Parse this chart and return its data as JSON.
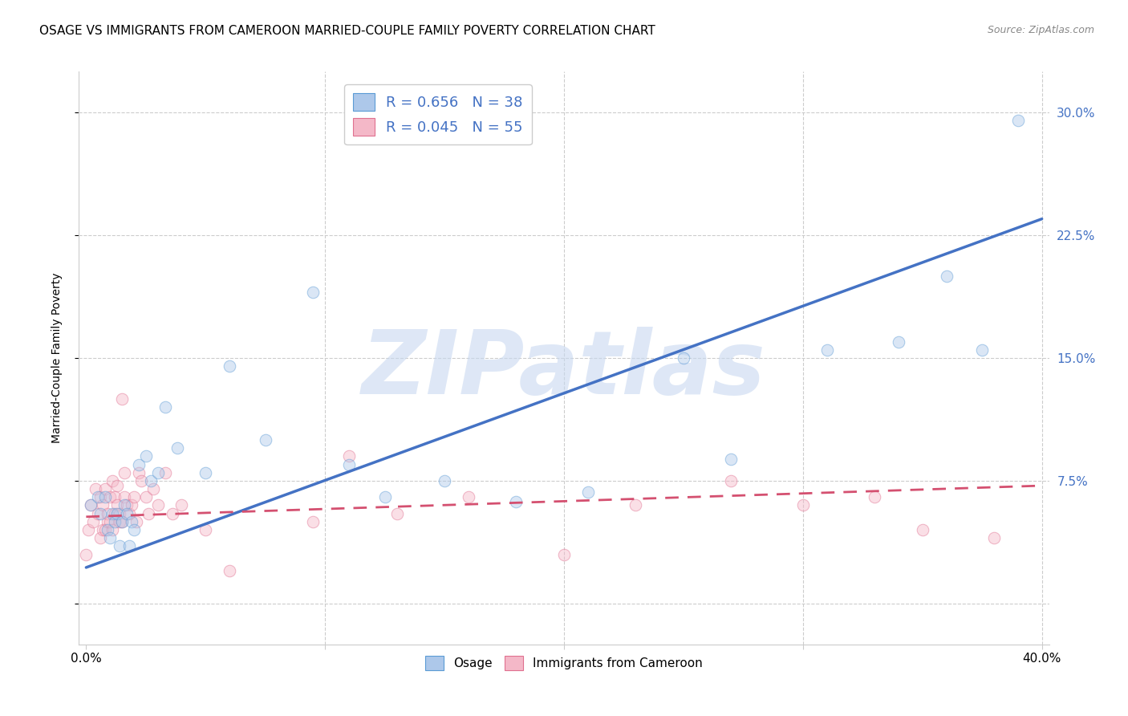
{
  "title": "OSAGE VS IMMIGRANTS FROM CAMEROON MARRIED-COUPLE FAMILY POVERTY CORRELATION CHART",
  "source": "Source: ZipAtlas.com",
  "ylabel_label": "Married-Couple Family Poverty",
  "xlim": [
    -0.003,
    0.403
  ],
  "ylim": [
    -0.025,
    0.325
  ],
  "yticks_right": [
    0.0,
    0.075,
    0.15,
    0.225,
    0.3
  ],
  "yticklabels_right": [
    "",
    "7.5%",
    "15.0%",
    "22.5%",
    "30.0%"
  ],
  "xtick_positions": [
    0.0,
    0.1,
    0.2,
    0.3,
    0.4
  ],
  "xticklabels": [
    "0.0%",
    "",
    "",
    "",
    "40.0%"
  ],
  "series1_name": "Osage",
  "series1_color": "#adc8ea",
  "series1_edge_color": "#5b9bd5",
  "series1_line_color": "#4472c4",
  "series1_R": 0.656,
  "series1_N": 38,
  "series2_name": "Immigrants from Cameroon",
  "series2_color": "#f4b8c8",
  "series2_edge_color": "#e07090",
  "series2_line_color": "#d45070",
  "series2_R": 0.045,
  "series2_N": 55,
  "legend_R_color": "#4472c4",
  "background_color": "#ffffff",
  "grid_color": "#cccccc",
  "watermark_text": "ZIPatlas",
  "watermark_color": "#c8d8f0",
  "title_fontsize": 11,
  "axis_fontsize": 10,
  "tick_fontsize": 11,
  "legend_fontsize": 13,
  "scatter_size": 110,
  "scatter_alpha": 0.45,
  "blue_line_x": [
    0.0,
    0.4
  ],
  "blue_line_y": [
    0.022,
    0.235
  ],
  "pink_line_x": [
    0.0,
    0.4
  ],
  "pink_line_y": [
    0.053,
    0.072
  ],
  "osage_x": [
    0.002,
    0.005,
    0.006,
    0.008,
    0.009,
    0.01,
    0.011,
    0.012,
    0.013,
    0.014,
    0.015,
    0.016,
    0.017,
    0.018,
    0.019,
    0.02,
    0.022,
    0.025,
    0.027,
    0.03,
    0.033,
    0.038,
    0.05,
    0.06,
    0.075,
    0.095,
    0.11,
    0.125,
    0.15,
    0.18,
    0.21,
    0.25,
    0.27,
    0.31,
    0.34,
    0.36,
    0.375,
    0.39
  ],
  "osage_y": [
    0.06,
    0.065,
    0.055,
    0.065,
    0.045,
    0.04,
    0.055,
    0.05,
    0.055,
    0.035,
    0.05,
    0.06,
    0.055,
    0.035,
    0.05,
    0.045,
    0.085,
    0.09,
    0.075,
    0.08,
    0.12,
    0.095,
    0.08,
    0.145,
    0.1,
    0.19,
    0.085,
    0.065,
    0.075,
    0.062,
    0.068,
    0.15,
    0.088,
    0.155,
    0.16,
    0.2,
    0.155,
    0.295
  ],
  "cameroon_x": [
    0.0,
    0.001,
    0.002,
    0.003,
    0.004,
    0.005,
    0.006,
    0.006,
    0.007,
    0.007,
    0.008,
    0.008,
    0.009,
    0.009,
    0.01,
    0.01,
    0.011,
    0.011,
    0.012,
    0.012,
    0.013,
    0.013,
    0.014,
    0.014,
    0.015,
    0.015,
    0.016,
    0.016,
    0.017,
    0.018,
    0.019,
    0.02,
    0.021,
    0.022,
    0.023,
    0.025,
    0.026,
    0.028,
    0.03,
    0.033,
    0.036,
    0.04,
    0.05,
    0.06,
    0.095,
    0.11,
    0.13,
    0.16,
    0.2,
    0.23,
    0.27,
    0.3,
    0.33,
    0.35,
    0.38
  ],
  "cameroon_y": [
    0.03,
    0.045,
    0.06,
    0.05,
    0.07,
    0.055,
    0.065,
    0.04,
    0.045,
    0.06,
    0.07,
    0.045,
    0.05,
    0.055,
    0.065,
    0.05,
    0.045,
    0.075,
    0.055,
    0.065,
    0.072,
    0.06,
    0.055,
    0.05,
    0.125,
    0.05,
    0.065,
    0.08,
    0.06,
    0.055,
    0.06,
    0.065,
    0.05,
    0.08,
    0.075,
    0.065,
    0.055,
    0.07,
    0.06,
    0.08,
    0.055,
    0.06,
    0.045,
    0.02,
    0.05,
    0.09,
    0.055,
    0.065,
    0.03,
    0.06,
    0.075,
    0.06,
    0.065,
    0.045,
    0.04
  ]
}
